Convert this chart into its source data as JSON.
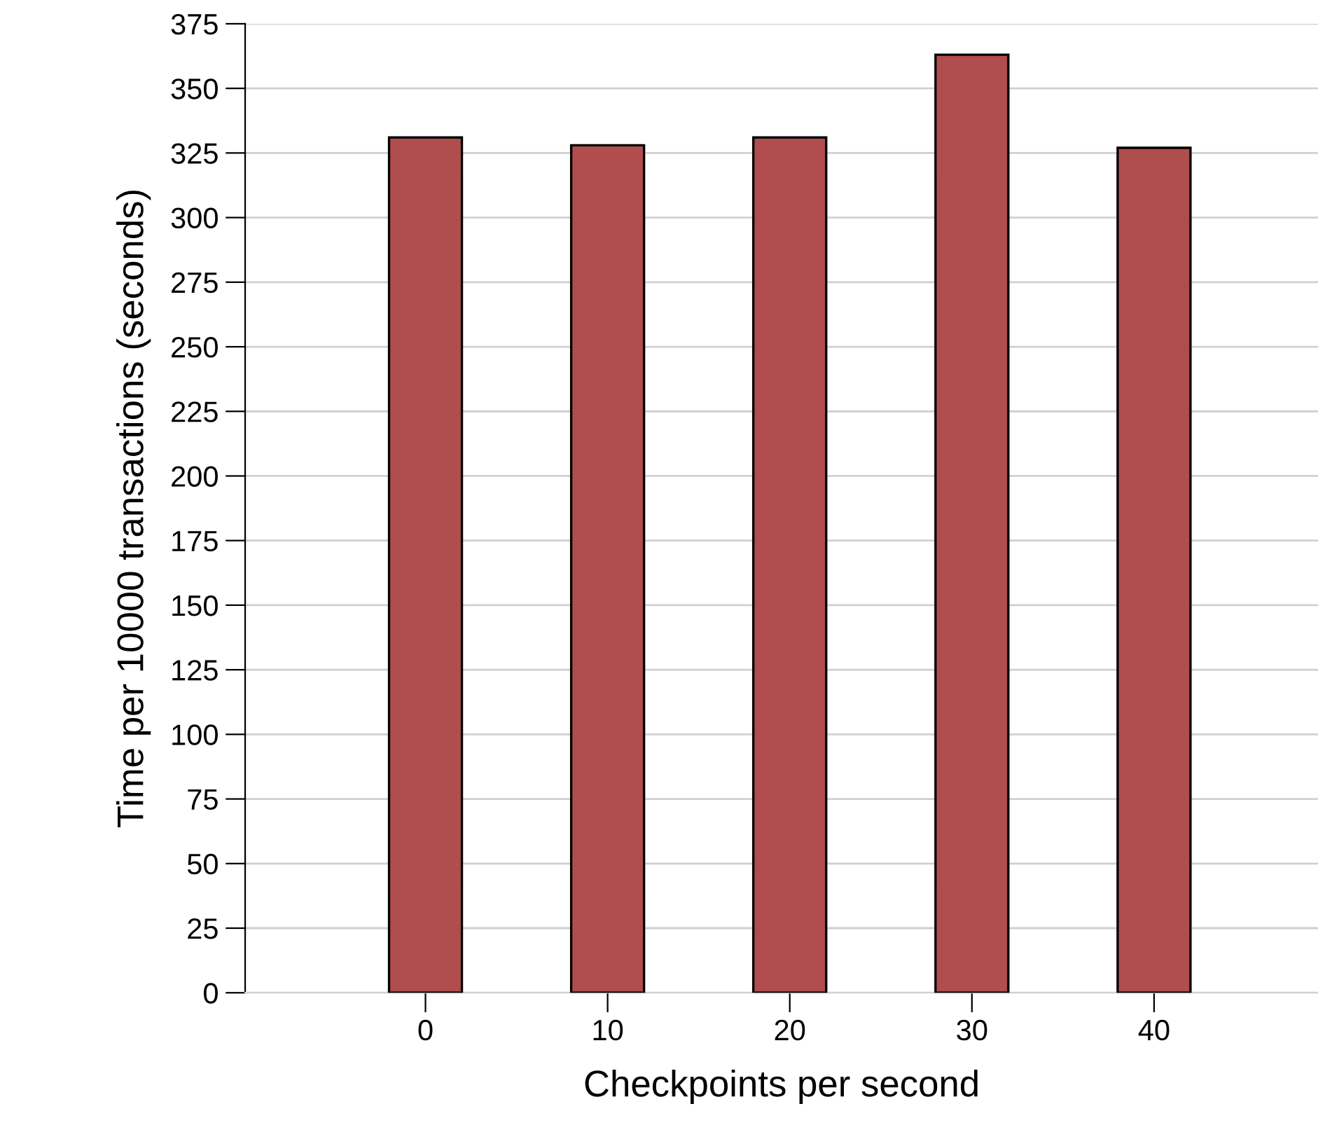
{
  "chart_data": {
    "type": "bar",
    "xlabel": "Checkpoints per second",
    "ylabel": "Time per 10000 transactions (seconds)",
    "categories": [
      "0",
      "10",
      "20",
      "30",
      "40"
    ],
    "values": [
      331,
      328,
      331,
      363,
      327
    ],
    "color": "#b04d4d",
    "ylim": [
      0,
      375
    ],
    "yticks": [
      0,
      25,
      50,
      75,
      100,
      125,
      150,
      175,
      200,
      225,
      250,
      275,
      300,
      325,
      350,
      375
    ],
    "grid": "y"
  }
}
